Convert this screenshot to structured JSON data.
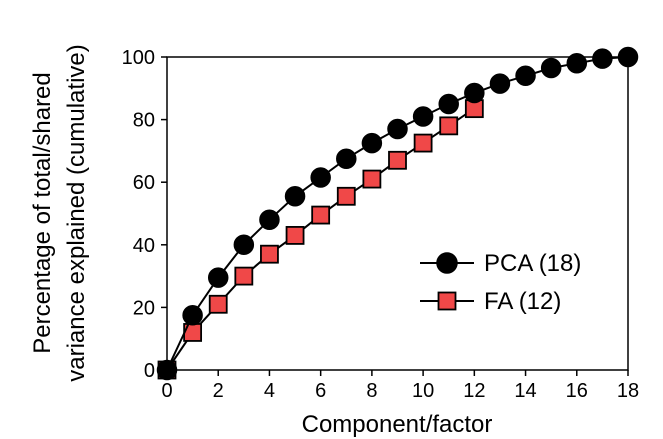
{
  "chart_data": {
    "type": "line",
    "title": "",
    "xlabel": "Component/factor",
    "ylabel_lines": [
      "Percentage of total/shared",
      "variance explained (cumulative)"
    ],
    "xlim": [
      0,
      18
    ],
    "ylim": [
      0,
      100
    ],
    "xticks": [
      0,
      2,
      4,
      6,
      8,
      10,
      12,
      14,
      16,
      18
    ],
    "yticks": [
      0,
      20,
      40,
      60,
      80,
      100
    ],
    "grid": false,
    "legend": "right",
    "series": [
      {
        "name": "PCA (18)",
        "marker": "circle",
        "color": "#000000",
        "x": [
          0,
          1,
          2,
          3,
          4,
          5,
          6,
          7,
          8,
          9,
          10,
          11,
          12,
          13,
          14,
          15,
          16,
          17,
          18
        ],
        "values": [
          0,
          17.5,
          29.5,
          40,
          48,
          55.5,
          61.5,
          67.5,
          72.5,
          77,
          81,
          85,
          88.5,
          91.5,
          94,
          96.5,
          98,
          99.5,
          100
        ]
      },
      {
        "name": "FA (12)",
        "marker": "square",
        "color": "#f04848",
        "x": [
          0,
          1,
          2,
          3,
          4,
          5,
          6,
          7,
          8,
          9,
          10,
          11,
          12
        ],
        "values": [
          0,
          12,
          21,
          30,
          37,
          43,
          49.5,
          55.5,
          61,
          67,
          72.5,
          78,
          83.5
        ]
      }
    ]
  }
}
